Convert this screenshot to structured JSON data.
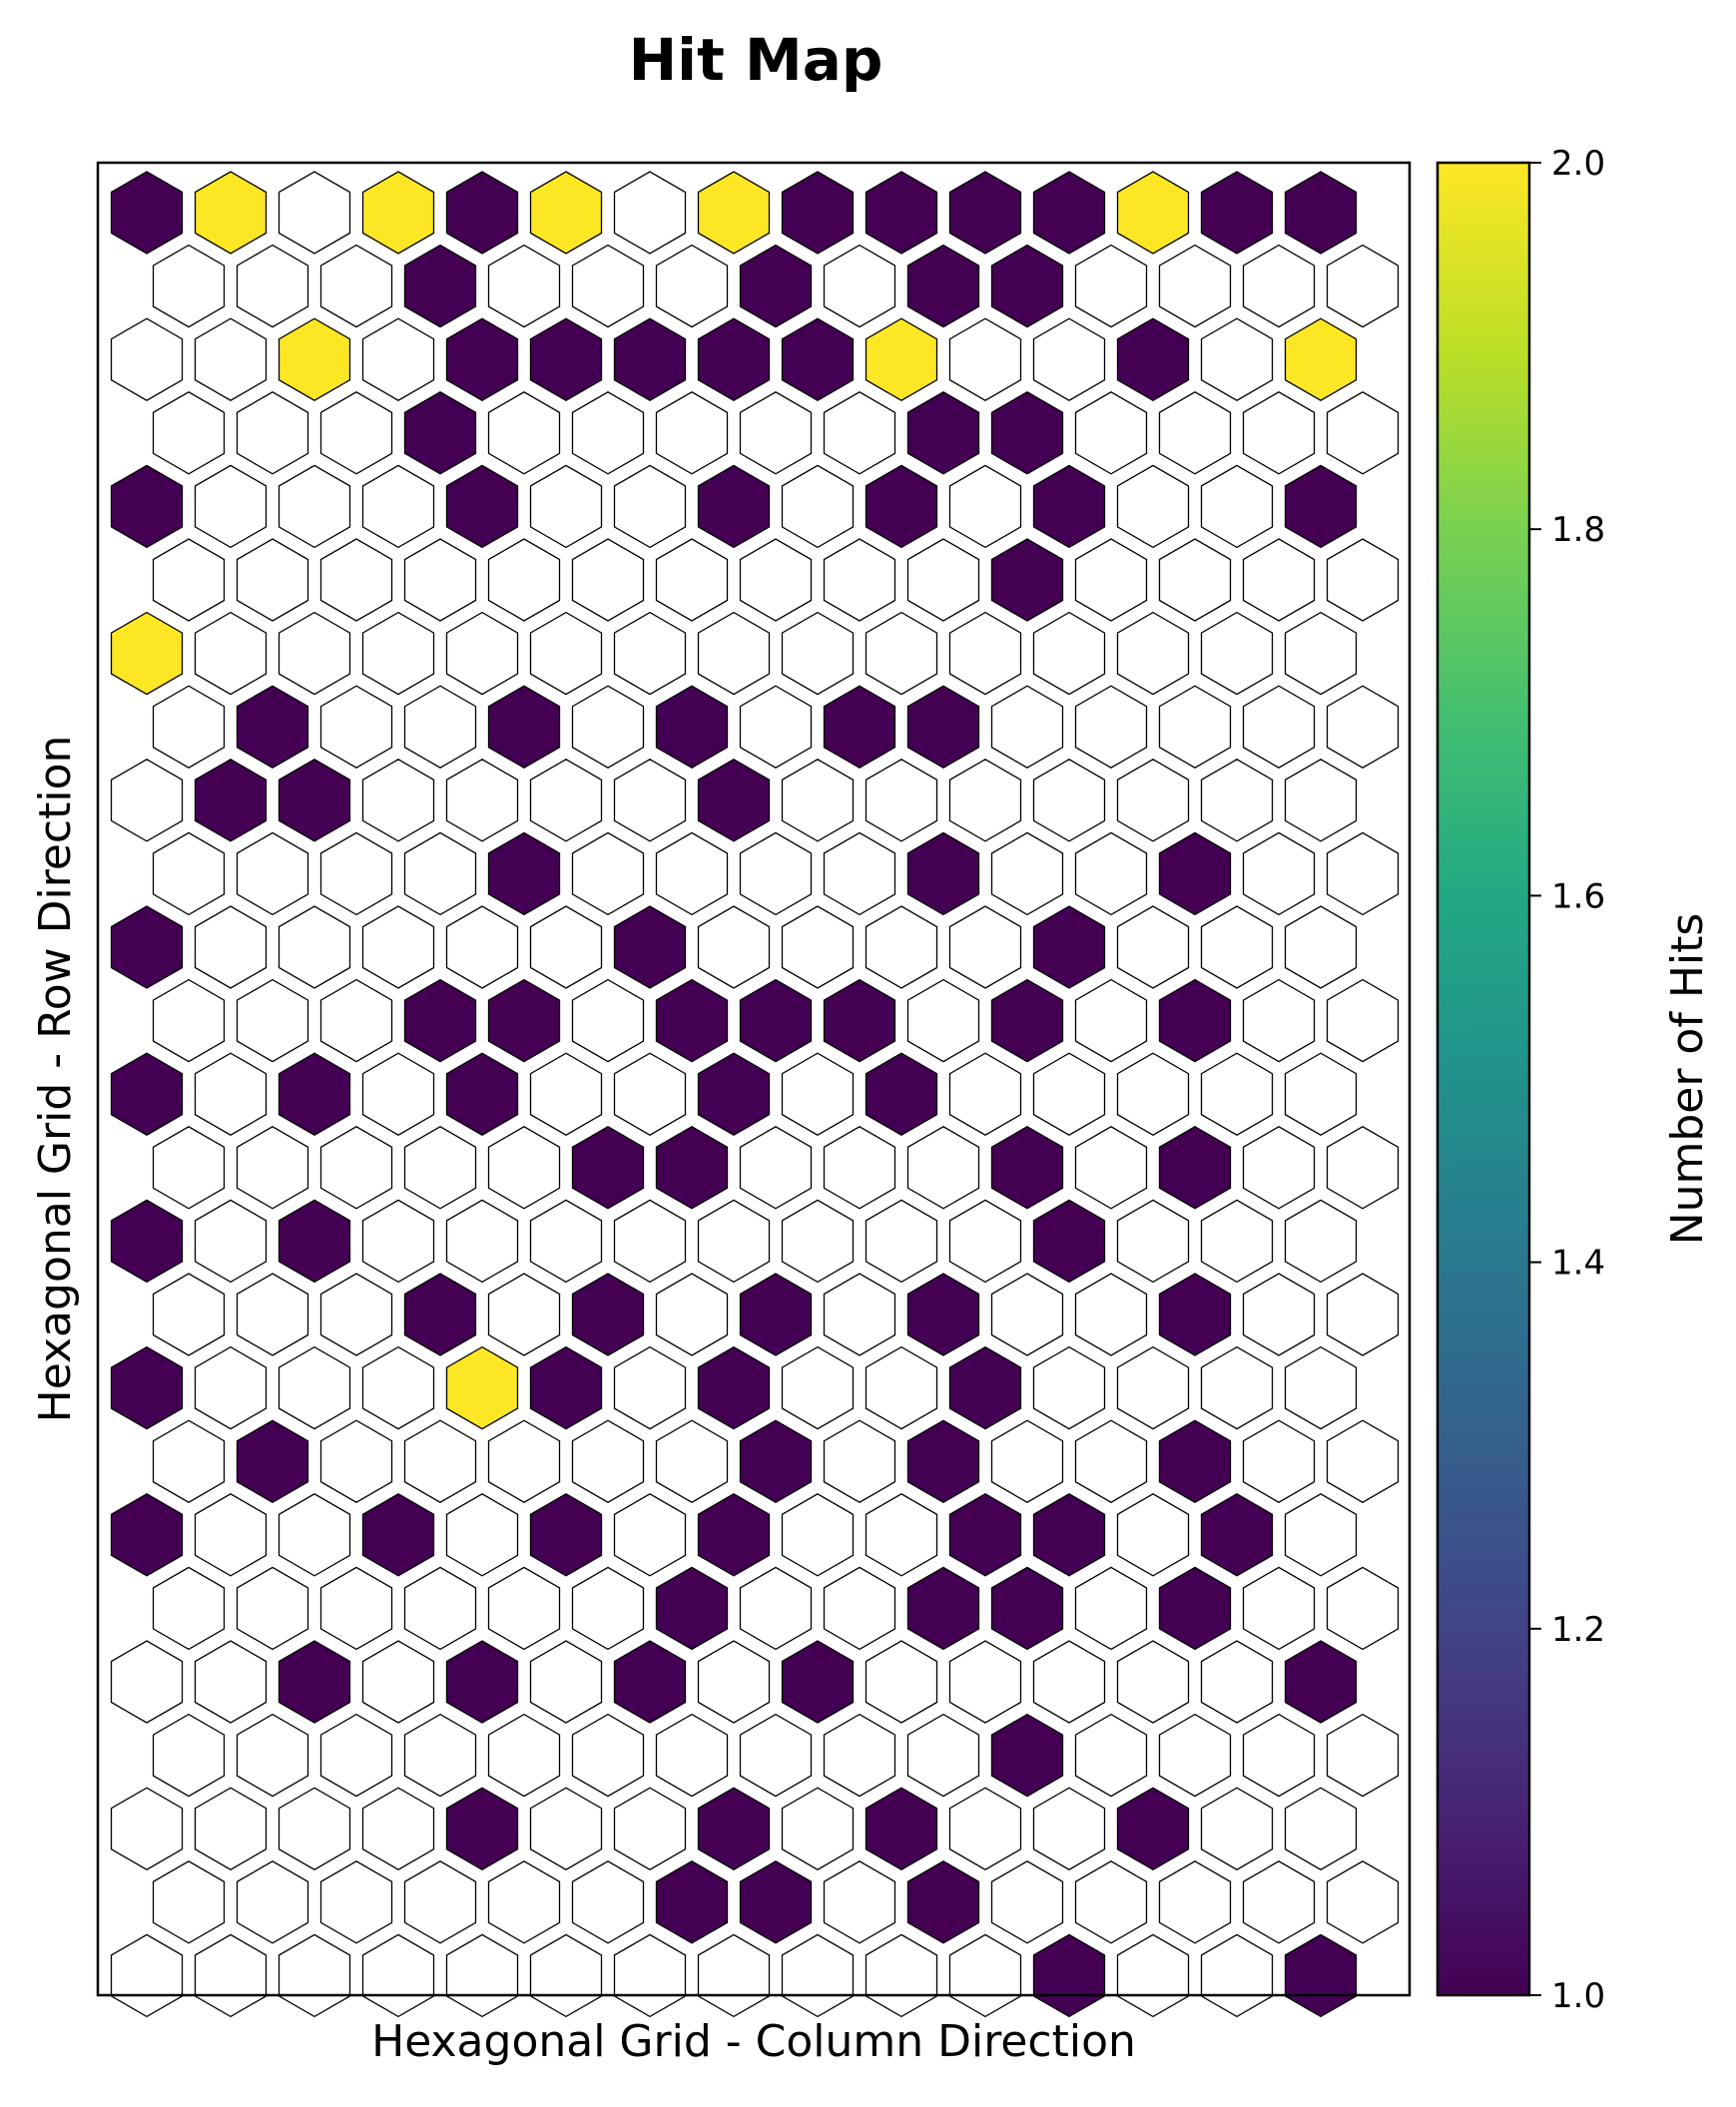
{
  "chart_data": {
    "type": "heatmap",
    "subtype": "hexagonal-grid",
    "title": "Hit Map",
    "xlabel": "Hexagonal Grid - Column Direction",
    "ylabel": "Hexagonal Grid - Row Direction",
    "colorbar": {
      "label": "Number of Hits",
      "range": [
        1.0,
        2.0
      ],
      "ticks": [
        "1.0",
        "1.2",
        "1.4",
        "1.6",
        "1.8",
        "2.0"
      ],
      "colormap": "viridis"
    },
    "grid": {
      "rows": 25,
      "cols": 15,
      "empty_color": "#ffffff",
      "zero_means": "no hits"
    },
    "rows_top_to_bottom": [
      [
        1,
        2,
        0,
        2,
        1,
        2,
        0,
        2,
        1,
        1,
        1,
        1,
        2,
        1,
        1
      ],
      [
        0,
        0,
        0,
        1,
        0,
        0,
        0,
        1,
        0,
        1,
        1,
        0,
        0,
        0,
        0
      ],
      [
        0,
        0,
        2,
        0,
        1,
        1,
        1,
        1,
        1,
        2,
        0,
        0,
        1,
        0,
        2
      ],
      [
        0,
        0,
        0,
        1,
        0,
        0,
        0,
        0,
        0,
        1,
        1,
        0,
        0,
        0,
        0
      ],
      [
        1,
        0,
        0,
        0,
        1,
        0,
        0,
        1,
        0,
        1,
        0,
        1,
        0,
        0,
        1
      ],
      [
        0,
        0,
        0,
        0,
        0,
        0,
        0,
        0,
        0,
        0,
        1,
        0,
        0,
        0,
        0
      ],
      [
        2,
        0,
        0,
        0,
        0,
        0,
        0,
        0,
        0,
        0,
        0,
        0,
        0,
        0,
        0
      ],
      [
        0,
        1,
        0,
        0,
        1,
        0,
        1,
        0,
        1,
        1,
        0,
        0,
        0,
        0,
        0
      ],
      [
        0,
        1,
        1,
        0,
        0,
        0,
        0,
        1,
        0,
        0,
        0,
        0,
        0,
        0,
        0
      ],
      [
        0,
        0,
        0,
        0,
        1,
        0,
        0,
        0,
        0,
        1,
        0,
        0,
        1,
        0,
        0
      ],
      [
        1,
        0,
        0,
        0,
        0,
        0,
        1,
        0,
        0,
        0,
        0,
        1,
        0,
        0,
        0
      ],
      [
        0,
        0,
        0,
        1,
        1,
        0,
        1,
        1,
        1,
        0,
        1,
        0,
        1,
        0,
        0
      ],
      [
        1,
        0,
        1,
        0,
        1,
        0,
        0,
        1,
        0,
        1,
        0,
        0,
        0,
        0,
        0
      ],
      [
        0,
        0,
        0,
        0,
        0,
        1,
        1,
        0,
        0,
        0,
        1,
        0,
        1,
        0,
        0
      ],
      [
        1,
        0,
        1,
        0,
        0,
        0,
        0,
        0,
        0,
        0,
        0,
        1,
        0,
        0,
        0
      ],
      [
        0,
        0,
        0,
        1,
        0,
        1,
        0,
        1,
        0,
        1,
        0,
        0,
        1,
        0,
        0
      ],
      [
        1,
        0,
        0,
        0,
        2,
        1,
        0,
        1,
        0,
        0,
        1,
        0,
        0,
        0,
        0
      ],
      [
        0,
        1,
        0,
        0,
        0,
        0,
        0,
        1,
        0,
        1,
        0,
        0,
        1,
        0,
        0
      ],
      [
        1,
        0,
        0,
        1,
        0,
        1,
        0,
        1,
        0,
        0,
        1,
        1,
        0,
        1,
        0
      ],
      [
        0,
        0,
        0,
        0,
        0,
        0,
        1,
        0,
        0,
        1,
        1,
        0,
        1,
        0,
        0
      ],
      [
        0,
        0,
        1,
        0,
        1,
        0,
        1,
        0,
        1,
        0,
        0,
        0,
        0,
        0,
        1
      ],
      [
        0,
        0,
        0,
        0,
        0,
        0,
        0,
        0,
        0,
        0,
        1,
        0,
        0,
        0,
        0
      ],
      [
        0,
        0,
        0,
        0,
        1,
        0,
        0,
        1,
        0,
        1,
        0,
        0,
        1,
        0,
        0
      ],
      [
        0,
        0,
        0,
        0,
        0,
        0,
        1,
        1,
        0,
        1,
        0,
        0,
        0,
        0,
        0
      ],
      [
        0,
        0,
        0,
        0,
        0,
        0,
        0,
        0,
        0,
        0,
        0,
        1,
        0,
        0,
        1
      ]
    ]
  }
}
